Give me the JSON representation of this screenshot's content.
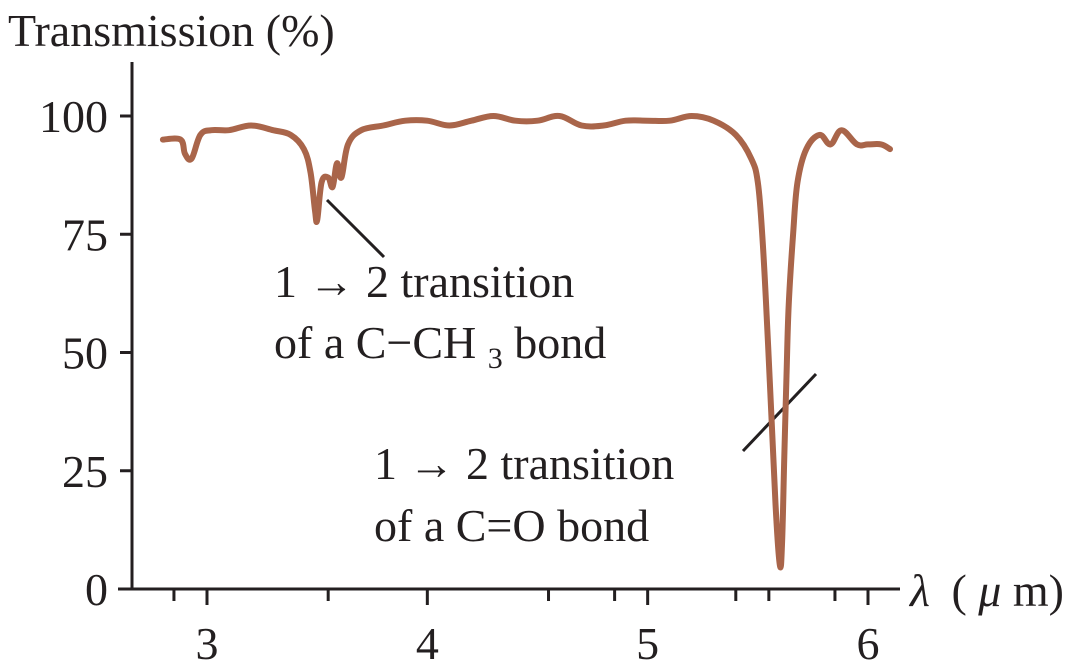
{
  "chart_data": {
    "type": "line",
    "ylabel": "Transmission (%)",
    "xlabel_symbol": "λ",
    "xlabel_unit_open": "(",
    "xlabel_mu": "μ",
    "xlabel_unit_close": "m)",
    "xlim": [
      2.8,
      6.2
    ],
    "ylim": [
      0,
      110
    ],
    "yticks": [
      0,
      25,
      50,
      75,
      100
    ],
    "ytick_labels": [
      "0",
      "25",
      "50",
      "75",
      "100"
    ],
    "xticks_major": [
      3,
      4,
      5,
      6
    ],
    "xtick_labels": [
      "3",
      "4",
      "5",
      "6"
    ],
    "xticks_minor": [
      2.85,
      3.55,
      4.55,
      4.85,
      5.4,
      5.55,
      5.85
    ],
    "grid": false,
    "line_color": "#a9654a",
    "series": [
      {
        "x": [
          2.8,
          2.88,
          2.9,
          2.93,
          2.97,
          3.02,
          3.1,
          3.2,
          3.3,
          3.38,
          3.44,
          3.47,
          3.49,
          3.5,
          3.52,
          3.55,
          3.57,
          3.59,
          3.61,
          3.64,
          3.7,
          3.8,
          3.9,
          4.0,
          4.1,
          4.2,
          4.3,
          4.4,
          4.5,
          4.6,
          4.7,
          4.8,
          4.9,
          5.0,
          5.1,
          5.2,
          5.3,
          5.4,
          5.47,
          5.5,
          5.52,
          5.54,
          5.56,
          5.58,
          5.6,
          5.61,
          5.62,
          5.63,
          5.64,
          5.66,
          5.68,
          5.72,
          5.78,
          5.83,
          5.88,
          5.95,
          6.0,
          6.06,
          6.1
        ],
        "y": [
          95,
          95,
          92,
          91,
          96,
          97,
          97,
          98,
          97,
          96,
          93,
          88,
          80,
          78,
          86,
          87,
          85,
          90,
          87,
          94,
          97,
          98,
          99,
          99,
          98,
          99,
          100,
          99,
          99,
          100,
          98,
          98,
          99,
          99,
          99,
          100,
          99,
          96,
          91,
          86,
          75,
          58,
          38,
          18,
          5,
          10,
          28,
          45,
          60,
          75,
          86,
          93,
          96,
          94,
          97,
          94,
          94,
          94,
          93
        ]
      }
    ],
    "annotations": [
      {
        "line1_prefix": "1 ",
        "arrow": "→",
        "line1_suffix": " 2 transition",
        "line2_prefix": "of a C−CH",
        "line2_sub": "3",
        "line2_suffix": " bond",
        "target_x": 3.5,
        "target_y": 80
      },
      {
        "line1_prefix": "1 ",
        "arrow": "→",
        "line1_suffix": " 2 transition",
        "line2_prefix": "of a C=O bond",
        "line2_sub": "",
        "line2_suffix": "",
        "target_x": 5.56,
        "target_y": 48
      }
    ]
  }
}
